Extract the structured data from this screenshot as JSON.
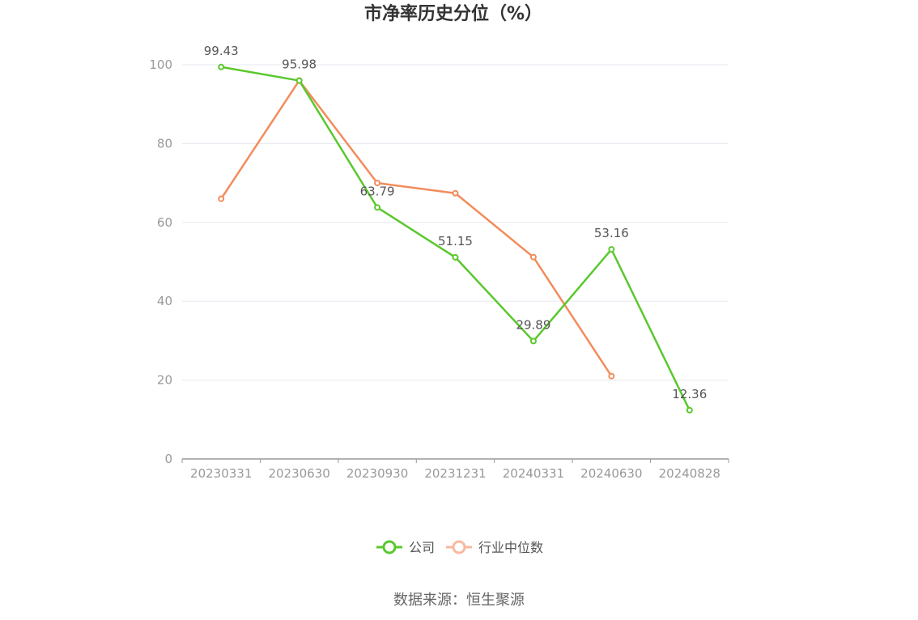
{
  "chart_data": {
    "type": "line",
    "title": "市净率历史分位（%）",
    "categories": [
      "20230331",
      "20230630",
      "20230930",
      "20231231",
      "20240331",
      "20240630",
      "20240828"
    ],
    "ylim": [
      0,
      100
    ],
    "yticks": [
      0,
      20,
      40,
      60,
      80,
      100
    ],
    "grid": true,
    "legend_position": "bottom",
    "series": [
      {
        "name": "公司",
        "color": "#5ac82e",
        "values": [
          99.43,
          95.98,
          63.79,
          51.15,
          29.89,
          53.16,
          12.36
        ],
        "labels": [
          "99.43",
          "95.98",
          "63.79",
          "51.15",
          "29.89",
          "53.16",
          "12.36"
        ]
      },
      {
        "name": "行业中位数",
        "color": "#f28c5c",
        "legend_color": "#f7b9a0",
        "values": [
          66.0,
          96.0,
          70.0,
          67.4,
          51.2,
          21.0,
          null
        ]
      }
    ]
  },
  "source_text": "数据来源：恒生聚源"
}
